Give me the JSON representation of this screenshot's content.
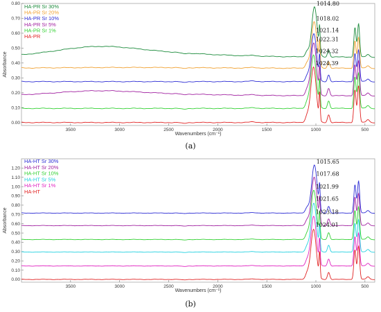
{
  "chart_data": [
    {
      "type": "line",
      "panel_label": "(a)",
      "xlabel": "Wavenumbers (cm⁻¹)",
      "ylabel": "Absorbance",
      "xlim": [
        4000,
        400
      ],
      "ylim": [
        -0.02,
        0.8
      ],
      "x_ticks": [
        3500,
        3000,
        2500,
        2000,
        1500,
        1000,
        500
      ],
      "y_ticks": [
        {
          "value": 0.0,
          "label": "0.00"
        },
        {
          "value": 0.1,
          "label": "0.10"
        },
        {
          "value": 0.2,
          "label": "0.20"
        },
        {
          "value": 0.3,
          "label": "0.30"
        },
        {
          "value": 0.4,
          "label": "0.40"
        },
        {
          "value": 0.5,
          "label": "0.50"
        },
        {
          "value": 0.6,
          "label": "0.60"
        },
        {
          "value": 0.7,
          "label": "0.70"
        },
        {
          "value": 0.8,
          "label": "0.80"
        }
      ],
      "legend_placement": "top-left",
      "series": [
        {
          "name": "HA-PR Sr 30%",
          "color": "#1a8a3a",
          "baseline": 0.44,
          "peak_top": 0.8,
          "peak_x": 1014.8,
          "peak_label": "1014.80",
          "mid_hump": 0.035,
          "broad_3400": 0.04
        },
        {
          "name": "HA-PR Sr 20%",
          "color": "#f0a030",
          "baseline": 0.365,
          "peak_top": 0.7,
          "peak_x": 1018.02,
          "peak_label": "1018.02",
          "mid_hump": 0.005,
          "broad_3400": 0.0
        },
        {
          "name": "HA-PR Sr 10%",
          "color": "#2b2bd4",
          "baseline": 0.275,
          "peak_top": 0.62,
          "peak_x": 1021.14,
          "peak_label": "1021.14",
          "mid_hump": 0.0,
          "broad_3400": 0.0
        },
        {
          "name": "HA-PR Sr 5%",
          "color": "#a020a0",
          "baseline": 0.18,
          "peak_top": 0.56,
          "peak_x": 1022.31,
          "peak_label": "1022.31",
          "mid_hump": 0.015,
          "broad_3400": 0.02
        },
        {
          "name": "HA-PR Sr 1%",
          "color": "#30d030",
          "baseline": 0.095,
          "peak_top": 0.48,
          "peak_x": 1024.32,
          "peak_label": "1024.32",
          "mid_hump": 0.0,
          "broad_3400": 0.0
        },
        {
          "name": "HA-PR",
          "color": "#e02020",
          "baseline": 0.0,
          "peak_top": 0.4,
          "peak_x": 1024.39,
          "peak_label": "1024.39",
          "mid_hump": 0.0,
          "broad_3400": 0.0
        }
      ],
      "peak_label_values": [
        0.8,
        0.7,
        0.62,
        0.56,
        0.48,
        0.4
      ]
    },
    {
      "type": "line",
      "panel_label": "(b)",
      "xlabel": "Wavenumbers (cm⁻¹)",
      "ylabel": "Absorbance",
      "xlim": [
        4000,
        400
      ],
      "ylim": [
        -0.03,
        1.3
      ],
      "x_ticks": [
        3500,
        3000,
        2500,
        2000,
        1500,
        1000,
        500
      ],
      "y_ticks": [
        {
          "value": 0.0,
          "label": "0.00"
        },
        {
          "value": 0.1,
          "label": "0.10"
        },
        {
          "value": 0.2,
          "label": "0.20"
        },
        {
          "value": 0.3,
          "label": "0.30"
        },
        {
          "value": 0.4,
          "label": "0.40"
        },
        {
          "value": 0.5,
          "label": "0.50"
        },
        {
          "value": 0.6,
          "label": "0.60"
        },
        {
          "value": 0.7,
          "label": "0.70"
        },
        {
          "value": 0.8,
          "label": "0.80"
        },
        {
          "value": 0.9,
          "label": "0.90"
        },
        {
          "value": 1.0,
          "label": "1.00"
        },
        {
          "value": 1.1,
          "label": "1.10"
        },
        {
          "value": 1.2,
          "label": "1.20"
        }
      ],
      "legend_placement": "top-left",
      "series": [
        {
          "name": "HA-HT Sr 30%",
          "color": "#2b2bd4",
          "baseline": 0.715,
          "peak_top": 1.27,
          "peak_x": 1015.65,
          "peak_label": "1015.65",
          "mid_hump": 0.0,
          "broad_3400": 0.0
        },
        {
          "name": "HA-HT Sr 20%",
          "color": "#a020a0",
          "baseline": 0.58,
          "peak_top": 1.14,
          "peak_x": 1017.68,
          "peak_label": "1017.68",
          "mid_hump": 0.0,
          "broad_3400": 0.0
        },
        {
          "name": "HA-HT Sr 10%",
          "color": "#30d030",
          "baseline": 0.43,
          "peak_top": 1.0,
          "peak_x": 1021.99,
          "peak_label": "1021.99",
          "mid_hump": 0.0,
          "broad_3400": 0.0
        },
        {
          "name": "HA-HT Sr 5%",
          "color": "#20d0e0",
          "baseline": 0.295,
          "peak_top": 0.86,
          "peak_x": 1021.65,
          "peak_label": "1021.65",
          "mid_hump": 0.0,
          "broad_3400": 0.0
        },
        {
          "name": "HA-HT Sr 1%",
          "color": "#e020c0",
          "baseline": 0.145,
          "peak_top": 0.72,
          "peak_x": 1023.18,
          "peak_label": "1023.18",
          "mid_hump": 0.0,
          "broad_3400": 0.0
        },
        {
          "name": "HA-HT",
          "color": "#e02020",
          "baseline": 0.0,
          "peak_top": 0.58,
          "peak_x": 1024.01,
          "peak_label": "1024.01",
          "mid_hump": 0.0,
          "broad_3400": 0.0
        }
      ],
      "peak_label_values": [
        1.27,
        1.14,
        1.0,
        0.87,
        0.73,
        0.59
      ]
    }
  ]
}
